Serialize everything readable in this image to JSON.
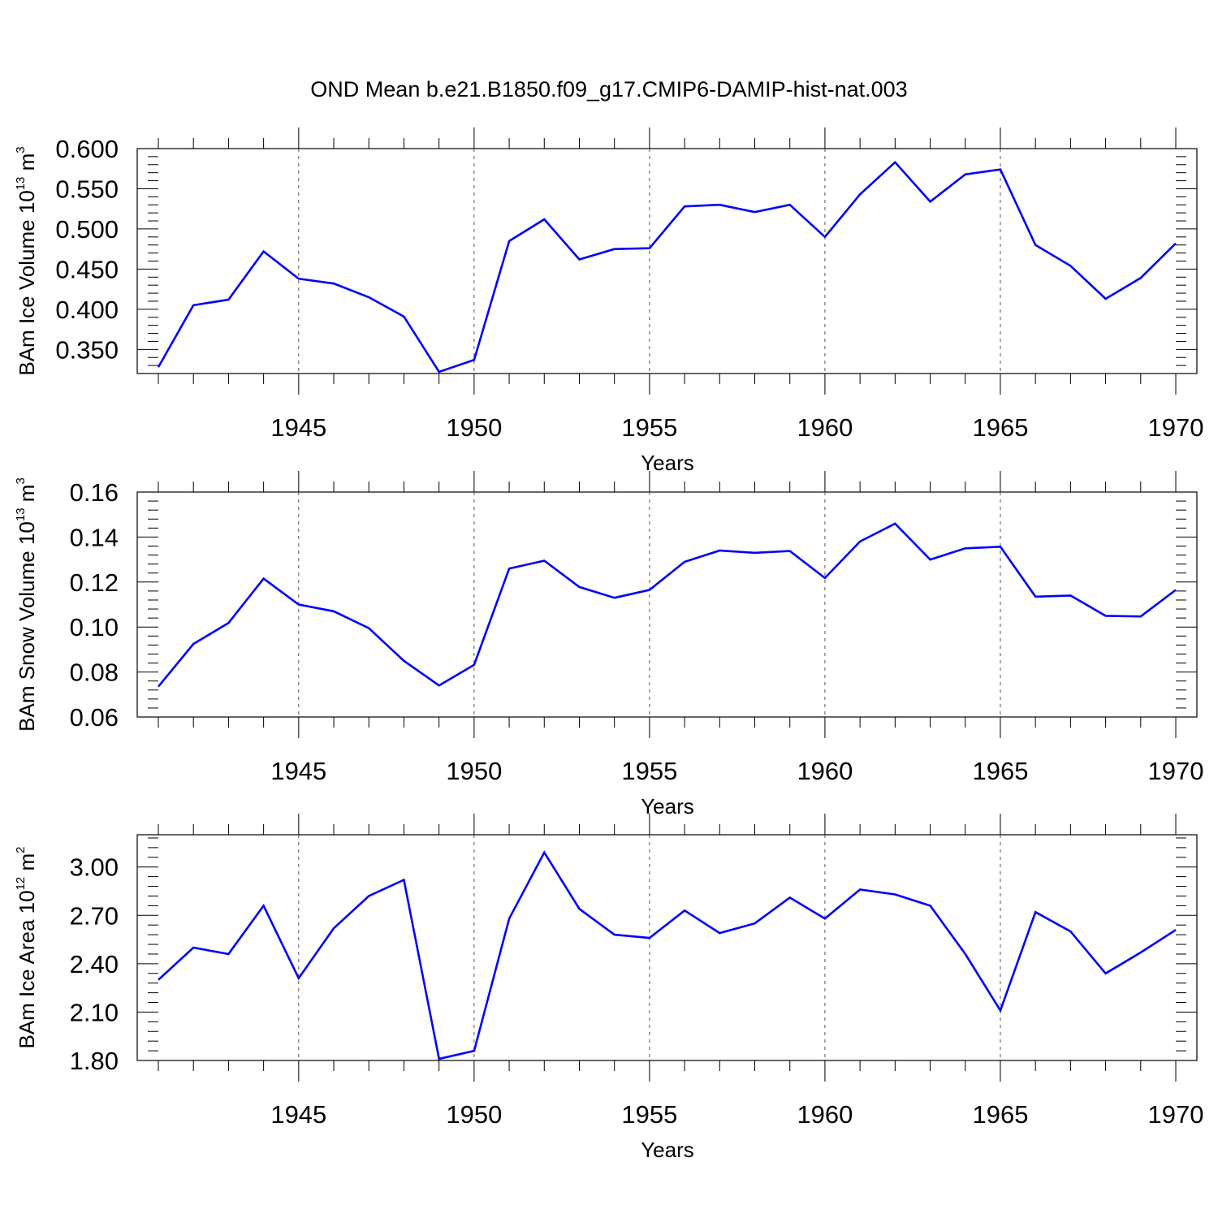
{
  "title": "OND Mean b.e21.B1850.f09_g17.CMIP6-DAMIP-hist-nat.003",
  "chart_data": [
    {
      "type": "line",
      "id": "ice-volume",
      "ylabel": {
        "text": "BAm Ice Volume 10",
        "exp1": "13",
        "unit": " m",
        "exp2": "3"
      },
      "xlabel": "Years",
      "xlim": [
        1941,
        1970
      ],
      "ylim": [
        0.32,
        0.6
      ],
      "yticks": [
        0.35,
        0.4,
        0.45,
        0.5,
        0.55,
        0.6
      ],
      "ytick_labels": [
        "0.350",
        "0.400",
        "0.450",
        "0.500",
        "0.550",
        "0.600"
      ],
      "xticks": [
        1945,
        1950,
        1955,
        1960,
        1965,
        1970
      ],
      "xtick_labels": [
        "1945",
        "1950",
        "1955",
        "1960",
        "1965",
        "1970"
      ],
      "yminor_step": 0.01,
      "grid": "vertical-dashed",
      "line_color": "#0000ff",
      "x": [
        1941,
        1942,
        1943,
        1944,
        1945,
        1946,
        1947,
        1948,
        1949,
        1950,
        1951,
        1952,
        1953,
        1954,
        1955,
        1956,
        1957,
        1958,
        1959,
        1960,
        1961,
        1962,
        1963,
        1964,
        1965,
        1966,
        1967,
        1968,
        1969,
        1970
      ],
      "values": [
        0.328,
        0.405,
        0.412,
        0.472,
        0.438,
        0.432,
        0.415,
        0.391,
        0.322,
        0.337,
        0.485,
        0.512,
        0.462,
        0.475,
        0.476,
        0.528,
        0.53,
        0.521,
        0.53,
        0.49,
        0.543,
        0.583,
        0.534,
        0.568,
        0.574,
        0.48,
        0.454,
        0.413,
        0.439,
        0.482
      ]
    },
    {
      "type": "line",
      "id": "snow-volume",
      "ylabel": {
        "text": "BAm Snow Volume 10",
        "exp1": "13",
        "unit": " m",
        "exp2": "3"
      },
      "xlabel": "Years",
      "xlim": [
        1941,
        1970
      ],
      "ylim": [
        0.06,
        0.16
      ],
      "yticks": [
        0.06,
        0.08,
        0.1,
        0.12,
        0.14,
        0.16
      ],
      "ytick_labels": [
        "0.06",
        "0.08",
        "0.10",
        "0.12",
        "0.14",
        "0.16"
      ],
      "xticks": [
        1945,
        1950,
        1955,
        1960,
        1965,
        1970
      ],
      "xtick_labels": [
        "1945",
        "1950",
        "1955",
        "1960",
        "1965",
        "1970"
      ],
      "yminor_step": 0.004,
      "grid": "vertical-dashed",
      "line_color": "#0000ff",
      "x": [
        1941,
        1942,
        1943,
        1944,
        1945,
        1946,
        1947,
        1948,
        1949,
        1950,
        1951,
        1952,
        1953,
        1954,
        1955,
        1956,
        1957,
        1958,
        1959,
        1960,
        1961,
        1962,
        1963,
        1964,
        1965,
        1966,
        1967,
        1968,
        1969,
        1970
      ],
      "values": [
        0.0735,
        0.0925,
        0.1018,
        0.1215,
        0.11,
        0.107,
        0.0995,
        0.085,
        0.074,
        0.0832,
        0.126,
        0.1295,
        0.1178,
        0.113,
        0.1165,
        0.129,
        0.134,
        0.133,
        0.1338,
        0.1218,
        0.138,
        0.146,
        0.13,
        0.135,
        0.1357,
        0.1135,
        0.114,
        0.105,
        0.1047,
        0.1165
      ]
    },
    {
      "type": "line",
      "id": "ice-area",
      "ylabel": {
        "text": "BAm Ice Area 10",
        "exp1": "12",
        "unit": " m",
        "exp2": "2"
      },
      "xlabel": "Years",
      "xlim": [
        1941,
        1970
      ],
      "ylim": [
        1.8,
        3.2
      ],
      "yticks": [
        1.8,
        2.1,
        2.4,
        2.7,
        3.0
      ],
      "ytick_labels": [
        "1.80",
        "2.10",
        "2.40",
        "2.70",
        "3.00"
      ],
      "xticks": [
        1945,
        1950,
        1955,
        1960,
        1965,
        1970
      ],
      "xtick_labels": [
        "1945",
        "1950",
        "1955",
        "1960",
        "1965",
        "1970"
      ],
      "yminor_step": 0.06,
      "grid": "vertical-dashed",
      "line_color": "#0000ff",
      "x": [
        1941,
        1942,
        1943,
        1944,
        1945,
        1946,
        1947,
        1948,
        1949,
        1950,
        1951,
        1952,
        1953,
        1954,
        1955,
        1956,
        1957,
        1958,
        1959,
        1960,
        1961,
        1962,
        1963,
        1964,
        1965,
        1966,
        1967,
        1968,
        1969,
        1970
      ],
      "values": [
        2.3,
        2.5,
        2.46,
        2.76,
        2.31,
        2.62,
        2.82,
        2.92,
        1.81,
        1.86,
        2.68,
        3.09,
        2.74,
        2.58,
        2.56,
        2.73,
        2.59,
        2.65,
        2.81,
        2.68,
        2.86,
        2.83,
        2.76,
        2.46,
        2.11,
        2.72,
        2.6,
        2.34,
        2.47,
        2.61
      ]
    }
  ]
}
